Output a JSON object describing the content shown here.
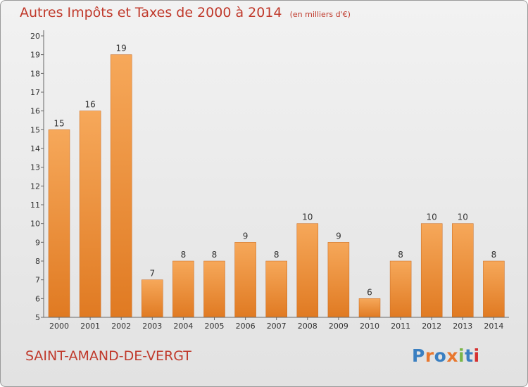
{
  "title": "Autres Impôts et Taxes de 2000 à 2014",
  "unit": "(en milliers d'€)",
  "commune": "SAINT-AMAND-DE-VERGT",
  "logo": {
    "text": "Proxiti",
    "colors": [
      "#3a7fc1",
      "#e8772e",
      "#3a7fc1",
      "#e8772e",
      "#7ab648",
      "#3a7fc1",
      "#d62f2f"
    ]
  },
  "colors": {
    "bar_light": "#f6a85a",
    "bar_dark": "#e07a22",
    "title": "#c0392b",
    "axis": "#555555"
  },
  "chart_data": {
    "type": "bar",
    "title": "Autres Impôts et Taxes de 2000 à 2014",
    "xlabel": "",
    "ylabel": "",
    "categories": [
      "2000",
      "2001",
      "2002",
      "2003",
      "2004",
      "2005",
      "2006",
      "2007",
      "2008",
      "2009",
      "2010",
      "2011",
      "2012",
      "2013",
      "2014"
    ],
    "values": [
      15,
      16,
      19,
      7,
      8,
      8,
      9,
      8,
      10,
      9,
      6,
      8,
      10,
      10,
      8
    ],
    "ylim": [
      5,
      20
    ],
    "yticks": [
      5,
      6,
      7,
      8,
      9,
      10,
      11,
      12,
      13,
      14,
      15,
      16,
      17,
      18,
      19,
      20
    ],
    "grid": false,
    "legend": "none"
  }
}
